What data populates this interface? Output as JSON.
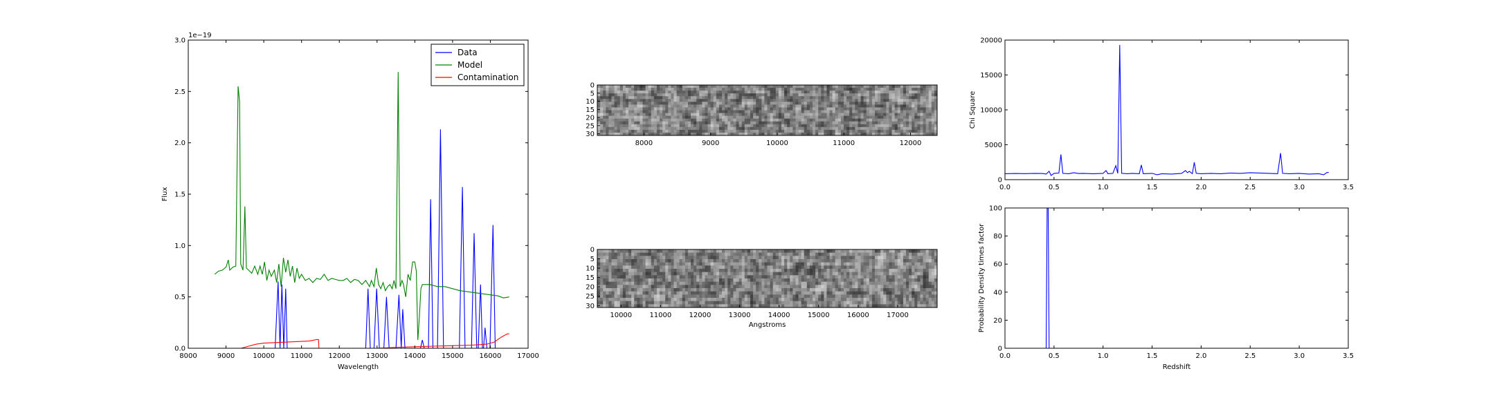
{
  "charts": {
    "spectrum": {
      "type": "line",
      "xlabel": "Wavelength",
      "ylabel": "Flux",
      "xlim": [
        8000,
        17000
      ],
      "ylim": [
        0,
        3.0
      ],
      "offset_text": "1e−19",
      "xticks": [
        "8000",
        "9000",
        "10000",
        "11000",
        "12000",
        "13000",
        "14000",
        "15000",
        "16000",
        "17000"
      ],
      "yticks": [
        "0.0",
        "0.5",
        "1.0",
        "1.5",
        "2.0",
        "2.5",
        "3.0"
      ],
      "legend_location": "top-right",
      "legend": [
        {
          "label": "Data",
          "color": "#0000ff"
        },
        {
          "label": "Model",
          "color": "#008000"
        },
        {
          "label": "Contamination",
          "color": "#ff0000"
        }
      ],
      "series": [
        {
          "name": "Data",
          "color": "#0000ff",
          "points": [
            [
              10300,
              0
            ],
            [
              10380,
              0.65
            ],
            [
              10430,
              0
            ],
            [
              10480,
              0.62
            ],
            [
              10530,
              0
            ],
            [
              10580,
              0.58
            ],
            [
              10620,
              0
            ],
            [
              12700,
              0
            ],
            [
              12760,
              0.58
            ],
            [
              12820,
              0
            ],
            [
              12920,
              0
            ],
            [
              12990,
              0.58
            ],
            [
              13060,
              0
            ],
            [
              13180,
              0
            ],
            [
              13250,
              0.5
            ],
            [
              13320,
              0
            ],
            [
              13500,
              0
            ],
            [
              13580,
              0.52
            ],
            [
              13640,
              0
            ],
            [
              13680,
              0.38
            ],
            [
              13740,
              0
            ],
            [
              14150,
              0
            ],
            [
              14200,
              0.08
            ],
            [
              14250,
              0
            ],
            [
              14360,
              0
            ],
            [
              14420,
              1.45
            ],
            [
              14480,
              0
            ],
            [
              14600,
              0
            ],
            [
              14680,
              2.13
            ],
            [
              14760,
              0
            ],
            [
              15180,
              0
            ],
            [
              15260,
              1.57
            ],
            [
              15330,
              0
            ],
            [
              15500,
              0
            ],
            [
              15570,
              1.12
            ],
            [
              15640,
              0
            ],
            [
              15680,
              0
            ],
            [
              15740,
              0.62
            ],
            [
              15790,
              0
            ],
            [
              15820,
              0
            ],
            [
              15860,
              0.2
            ],
            [
              15910,
              0
            ],
            [
              15990,
              0
            ],
            [
              16070,
              1.2
            ],
            [
              16130,
              0
            ]
          ]
        },
        {
          "name": "Model",
          "color": "#008000",
          "points": [
            [
              8700,
              0.72
            ],
            [
              8800,
              0.75
            ],
            [
              8900,
              0.76
            ],
            [
              9000,
              0.79
            ],
            [
              9060,
              0.86
            ],
            [
              9100,
              0.76
            ],
            [
              9180,
              0.79
            ],
            [
              9260,
              0.8
            ],
            [
              9320,
              2.55
            ],
            [
              9360,
              2.4
            ],
            [
              9390,
              0.82
            ],
            [
              9450,
              0.76
            ],
            [
              9500,
              1.38
            ],
            [
              9540,
              0.78
            ],
            [
              9600,
              0.76
            ],
            [
              9680,
              0.73
            ],
            [
              9760,
              0.8
            ],
            [
              9840,
              0.72
            ],
            [
              9900,
              0.8
            ],
            [
              9960,
              0.72
            ],
            [
              10020,
              0.84
            ],
            [
              10080,
              0.66
            ],
            [
              10140,
              0.76
            ],
            [
              10200,
              0.7
            ],
            [
              10280,
              0.76
            ],
            [
              10340,
              0.64
            ],
            [
              10400,
              0.82
            ],
            [
              10460,
              0.6
            ],
            [
              10520,
              0.88
            ],
            [
              10580,
              0.74
            ],
            [
              10640,
              0.86
            ],
            [
              10700,
              0.7
            ],
            [
              10760,
              0.8
            ],
            [
              10820,
              0.64
            ],
            [
              10880,
              0.78
            ],
            [
              10940,
              0.68
            ],
            [
              11000,
              0.72
            ],
            [
              11100,
              0.66
            ],
            [
              11200,
              0.68
            ],
            [
              11300,
              0.64
            ],
            [
              11400,
              0.68
            ],
            [
              11500,
              0.67
            ],
            [
              11600,
              0.72
            ],
            [
              11700,
              0.66
            ],
            [
              11800,
              0.68
            ],
            [
              11900,
              0.67
            ],
            [
              12000,
              0.66
            ],
            [
              12100,
              0.66
            ],
            [
              12200,
              0.68
            ],
            [
              12300,
              0.64
            ],
            [
              12400,
              0.67
            ],
            [
              12500,
              0.66
            ],
            [
              12600,
              0.62
            ],
            [
              12700,
              0.66
            ],
            [
              12800,
              0.6
            ],
            [
              12850,
              0.66
            ],
            [
              12920,
              0.6
            ],
            [
              12980,
              0.78
            ],
            [
              13040,
              0.62
            ],
            [
              13100,
              0.58
            ],
            [
              13160,
              0.64
            ],
            [
              13220,
              0.56
            ],
            [
              13280,
              0.6
            ],
            [
              13340,
              0.62
            ],
            [
              13400,
              0.58
            ],
            [
              13450,
              0.66
            ],
            [
              13500,
              0.58
            ],
            [
              13560,
              2.69
            ],
            [
              13610,
              0.6
            ],
            [
              13660,
              0.66
            ],
            [
              13700,
              0.62
            ],
            [
              13760,
              0.5
            ],
            [
              13820,
              0.72
            ],
            [
              13880,
              0.66
            ],
            [
              13940,
              0.84
            ],
            [
              14000,
              0.84
            ],
            [
              14040,
              0.75
            ],
            [
              14080,
              0.08
            ],
            [
              14120,
              0.3
            ],
            [
              14160,
              0.58
            ],
            [
              14200,
              0.62
            ],
            [
              14400,
              0.62
            ],
            [
              14600,
              0.6
            ],
            [
              14800,
              0.6
            ],
            [
              15000,
              0.58
            ],
            [
              15200,
              0.56
            ],
            [
              15400,
              0.55
            ],
            [
              15600,
              0.54
            ],
            [
              15800,
              0.53
            ],
            [
              16000,
              0.52
            ],
            [
              16200,
              0.51
            ],
            [
              16350,
              0.49
            ],
            [
              16500,
              0.5
            ]
          ]
        },
        {
          "name": "Contamination",
          "color": "#ff0000",
          "points": [
            [
              9000,
              0
            ],
            [
              9400,
              0
            ],
            [
              9600,
              0.02
            ],
            [
              9800,
              0.04
            ],
            [
              10000,
              0.05
            ],
            [
              10300,
              0.055
            ],
            [
              10600,
              0.06
            ],
            [
              10900,
              0.065
            ],
            [
              11200,
              0.07
            ],
            [
              11400,
              0.085
            ],
            [
              11450,
              0.085
            ],
            [
              11460,
              0
            ],
            [
              12000,
              0
            ],
            [
              13000,
              0
            ],
            [
              13600,
              0.01
            ],
            [
              14000,
              0.015
            ],
            [
              14500,
              0.02
            ],
            [
              15000,
              0.025
            ],
            [
              15500,
              0.03
            ],
            [
              15900,
              0.04
            ],
            [
              16100,
              0.06
            ],
            [
              16300,
              0.11
            ],
            [
              16450,
              0.14
            ],
            [
              16500,
              0.14
            ]
          ]
        }
      ]
    },
    "image_top": {
      "type": "heatmap",
      "xlim": [
        7300,
        12400
      ],
      "ylim": [
        31,
        0
      ],
      "xticks": [
        "8000",
        "9000",
        "10000",
        "11000",
        "12000"
      ],
      "yticks": [
        "0",
        "5",
        "10",
        "15",
        "20",
        "25",
        "30"
      ],
      "colormap": "grayscale"
    },
    "image_bottom": {
      "type": "heatmap",
      "xlabel": "Angstroms",
      "xlim": [
        9400,
        18000
      ],
      "ylim": [
        31,
        0
      ],
      "xticks": [
        "10000",
        "11000",
        "12000",
        "13000",
        "14000",
        "15000",
        "16000",
        "17000"
      ],
      "yticks": [
        "0",
        "5",
        "10",
        "15",
        "20",
        "25",
        "30"
      ],
      "colormap": "grayscale"
    },
    "chisq": {
      "type": "line",
      "ylabel": "Chi Square",
      "xlim": [
        0,
        3.5
      ],
      "ylim": [
        0,
        20000
      ],
      "xticks": [
        "0.0",
        "0.5",
        "1.0",
        "1.5",
        "2.0",
        "2.5",
        "3.0",
        "3.5"
      ],
      "yticks": [
        "0",
        "5000",
        "10000",
        "15000",
        "20000"
      ],
      "series": [
        {
          "color": "#0000ff",
          "points": [
            [
              0.0,
              850
            ],
            [
              0.1,
              880
            ],
            [
              0.2,
              860
            ],
            [
              0.3,
              900
            ],
            [
              0.38,
              880
            ],
            [
              0.42,
              800
            ],
            [
              0.45,
              1200
            ],
            [
              0.47,
              600
            ],
            [
              0.5,
              900
            ],
            [
              0.55,
              950
            ],
            [
              0.57,
              3600
            ],
            [
              0.59,
              900
            ],
            [
              0.65,
              850
            ],
            [
              0.7,
              1000
            ],
            [
              0.75,
              880
            ],
            [
              0.8,
              900
            ],
            [
              0.9,
              850
            ],
            [
              1.0,
              900
            ],
            [
              1.03,
              1300
            ],
            [
              1.05,
              850
            ],
            [
              1.1,
              900
            ],
            [
              1.13,
              2000
            ],
            [
              1.15,
              900
            ],
            [
              1.17,
              19300
            ],
            [
              1.19,
              900
            ],
            [
              1.25,
              850
            ],
            [
              1.3,
              900
            ],
            [
              1.37,
              850
            ],
            [
              1.39,
              2100
            ],
            [
              1.41,
              850
            ],
            [
              1.5,
              900
            ],
            [
              1.55,
              700
            ],
            [
              1.6,
              850
            ],
            [
              1.7,
              800
            ],
            [
              1.8,
              900
            ],
            [
              1.84,
              1300
            ],
            [
              1.86,
              1000
            ],
            [
              1.88,
              1200
            ],
            [
              1.91,
              850
            ],
            [
              1.93,
              2500
            ],
            [
              1.95,
              900
            ],
            [
              2.0,
              850
            ],
            [
              2.1,
              900
            ],
            [
              2.2,
              850
            ],
            [
              2.3,
              950
            ],
            [
              2.4,
              900
            ],
            [
              2.5,
              1000
            ],
            [
              2.6,
              950
            ],
            [
              2.7,
              900
            ],
            [
              2.78,
              850
            ],
            [
              2.81,
              3800
            ],
            [
              2.83,
              900
            ],
            [
              2.9,
              850
            ],
            [
              3.0,
              900
            ],
            [
              3.1,
              800
            ],
            [
              3.2,
              850
            ],
            [
              3.25,
              700
            ],
            [
              3.28,
              1000
            ],
            [
              3.3,
              1050
            ]
          ]
        }
      ]
    },
    "pdf": {
      "type": "line",
      "xlabel": "Redshift",
      "ylabel": "Probability Density times factor",
      "xlim": [
        0,
        3.5
      ],
      "ylim": [
        0,
        100
      ],
      "xticks": [
        "0.0",
        "0.5",
        "1.0",
        "1.5",
        "2.0",
        "2.5",
        "3.0",
        "3.5"
      ],
      "yticks": [
        "0",
        "20",
        "40",
        "60",
        "80",
        "100"
      ],
      "series": [
        {
          "color": "#0000ff",
          "points": [
            [
              0.0,
              0
            ],
            [
              0.42,
              0
            ],
            [
              0.43,
              100
            ],
            [
              0.44,
              100
            ],
            [
              0.45,
              0
            ],
            [
              3.3,
              0
            ]
          ]
        }
      ]
    }
  }
}
